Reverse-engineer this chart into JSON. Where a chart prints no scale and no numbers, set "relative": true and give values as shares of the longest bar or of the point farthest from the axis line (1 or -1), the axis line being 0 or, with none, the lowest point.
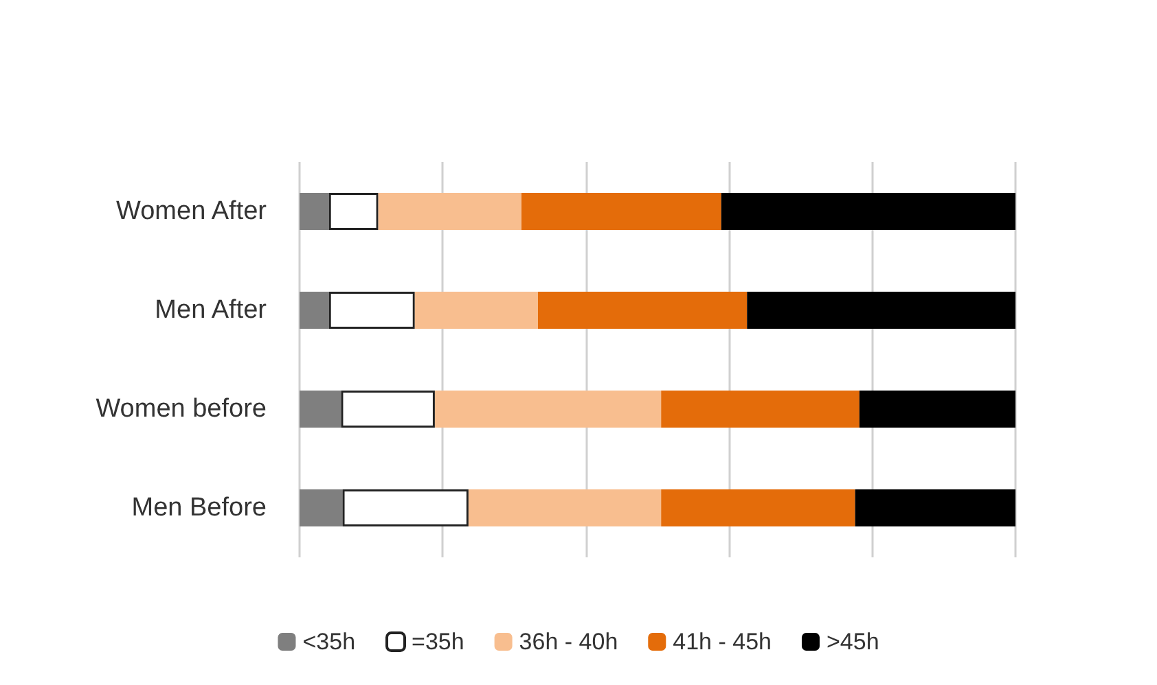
{
  "chart_data": {
    "type": "bar",
    "orientation": "horizontal",
    "stacked": true,
    "relative": true,
    "grid": "x",
    "legend": "bottom",
    "categories": [
      "Women After",
      "Men After",
      "Women before",
      "Men Before"
    ],
    "series": [
      {
        "name": "<35h",
        "color": "#7f7f7f",
        "values": [
          0.041,
          0.041,
          0.058,
          0.06
        ]
      },
      {
        "name": "=35h",
        "color": "#ffffff",
        "values": [
          0.069,
          0.12,
          0.131,
          0.176
        ]
      },
      {
        "name": "36h - 40h",
        "color": "#f8be8f",
        "values": [
          0.2,
          0.172,
          0.316,
          0.269
        ]
      },
      {
        "name": "41h - 45h",
        "color": "#e46c0a",
        "values": [
          0.279,
          0.292,
          0.277,
          0.271
        ]
      },
      {
        "name": ">45h",
        "color": "#000000",
        "values": [
          0.411,
          0.375,
          0.218,
          0.224
        ]
      }
    ]
  }
}
